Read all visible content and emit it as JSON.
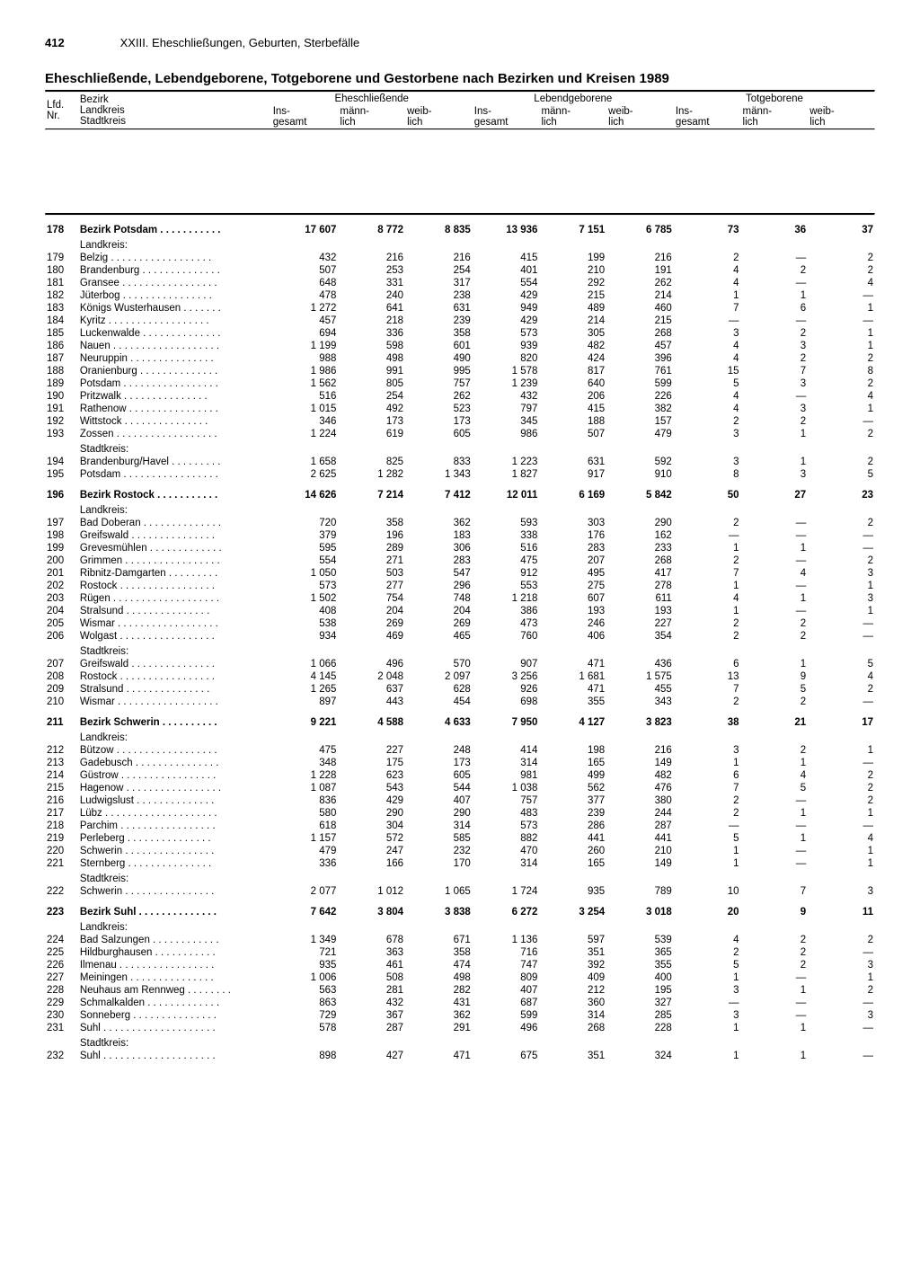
{
  "page_number": "412",
  "chapter": "XXIII. Eheschließungen, Geburten, Sterbefälle",
  "title": "Eheschließende, Lebendgeborene, Totgeborene und Gestorbene nach Bezirken und Kreisen 1989",
  "col_headers": {
    "nr": "Lfd.\nNr.",
    "region": "Bezirk\nLandkreis\nStadtkreis",
    "groups": [
      "Eheschließende",
      "Lebendgeborene",
      "Totgeborene"
    ],
    "sub": [
      "Ins-\ngesamt",
      "männ-\nlich",
      "weib-\nlich"
    ]
  },
  "section_labels": {
    "landkreis": "Landkreis:",
    "stadtkreis": "Stadtkreis:"
  },
  "rows": [
    {
      "nr": "178",
      "name": "Bezirk Potsdam",
      "v": [
        "17 607",
        "8 772",
        "8 835",
        "13 936",
        "7 151",
        "6 785",
        "73",
        "36",
        "37"
      ],
      "bold": true,
      "pad": true
    },
    {
      "label": "landkreis"
    },
    {
      "nr": "179",
      "name": "Belzig",
      "v": [
        "432",
        "216",
        "216",
        "415",
        "199",
        "216",
        "2",
        "—",
        "2"
      ]
    },
    {
      "nr": "180",
      "name": "Brandenburg",
      "v": [
        "507",
        "253",
        "254",
        "401",
        "210",
        "191",
        "4",
        "2",
        "2"
      ]
    },
    {
      "nr": "181",
      "name": "Gransee",
      "v": [
        "648",
        "331",
        "317",
        "554",
        "292",
        "262",
        "4",
        "—",
        "4"
      ]
    },
    {
      "nr": "182",
      "name": "Jüterbog",
      "v": [
        "478",
        "240",
        "238",
        "429",
        "215",
        "214",
        "1",
        "1",
        "—"
      ]
    },
    {
      "nr": "183",
      "name": "Königs Wusterhausen",
      "v": [
        "1 272",
        "641",
        "631",
        "949",
        "489",
        "460",
        "7",
        "6",
        "1"
      ]
    },
    {
      "nr": "184",
      "name": "Kyritz",
      "v": [
        "457",
        "218",
        "239",
        "429",
        "214",
        "215",
        "—",
        "—",
        "—"
      ]
    },
    {
      "nr": "185",
      "name": "Luckenwalde",
      "v": [
        "694",
        "336",
        "358",
        "573",
        "305",
        "268",
        "3",
        "2",
        "1"
      ]
    },
    {
      "nr": "186",
      "name": "Nauen",
      "v": [
        "1 199",
        "598",
        "601",
        "939",
        "482",
        "457",
        "4",
        "3",
        "1"
      ]
    },
    {
      "nr": "187",
      "name": "Neuruppin",
      "v": [
        "988",
        "498",
        "490",
        "820",
        "424",
        "396",
        "4",
        "2",
        "2"
      ]
    },
    {
      "nr": "188",
      "name": "Oranienburg",
      "v": [
        "1 986",
        "991",
        "995",
        "1 578",
        "817",
        "761",
        "15",
        "7",
        "8"
      ]
    },
    {
      "nr": "189",
      "name": "Potsdam",
      "v": [
        "1 562",
        "805",
        "757",
        "1 239",
        "640",
        "599",
        "5",
        "3",
        "2"
      ]
    },
    {
      "nr": "190",
      "name": "Pritzwalk",
      "v": [
        "516",
        "254",
        "262",
        "432",
        "206",
        "226",
        "4",
        "—",
        "4"
      ]
    },
    {
      "nr": "191",
      "name": "Rathenow",
      "v": [
        "1 015",
        "492",
        "523",
        "797",
        "415",
        "382",
        "4",
        "3",
        "1"
      ]
    },
    {
      "nr": "192",
      "name": "Wittstock",
      "v": [
        "346",
        "173",
        "173",
        "345",
        "188",
        "157",
        "2",
        "2",
        "—"
      ]
    },
    {
      "nr": "193",
      "name": "Zossen",
      "v": [
        "1 224",
        "619",
        "605",
        "986",
        "507",
        "479",
        "3",
        "1",
        "2"
      ]
    },
    {
      "label": "stadtkreis"
    },
    {
      "nr": "194",
      "name": "Brandenburg/Havel",
      "v": [
        "1 658",
        "825",
        "833",
        "1 223",
        "631",
        "592",
        "3",
        "1",
        "2"
      ]
    },
    {
      "nr": "195",
      "name": "Potsdam",
      "v": [
        "2 625",
        "1 282",
        "1 343",
        "1 827",
        "917",
        "910",
        "8",
        "3",
        "5"
      ]
    },
    {
      "nr": "196",
      "name": "Bezirk Rostock",
      "v": [
        "14 626",
        "7 214",
        "7 412",
        "12 011",
        "6 169",
        "5 842",
        "50",
        "27",
        "23"
      ],
      "bold": true,
      "pad": true
    },
    {
      "label": "landkreis"
    },
    {
      "nr": "197",
      "name": "Bad Doberan",
      "v": [
        "720",
        "358",
        "362",
        "593",
        "303",
        "290",
        "2",
        "—",
        "2"
      ]
    },
    {
      "nr": "198",
      "name": "Greifswald",
      "v": [
        "379",
        "196",
        "183",
        "338",
        "176",
        "162",
        "—",
        "—",
        "—"
      ]
    },
    {
      "nr": "199",
      "name": "Grevesmühlen",
      "v": [
        "595",
        "289",
        "306",
        "516",
        "283",
        "233",
        "1",
        "1",
        "—"
      ]
    },
    {
      "nr": "200",
      "name": "Grimmen",
      "v": [
        "554",
        "271",
        "283",
        "475",
        "207",
        "268",
        "2",
        "—",
        "2"
      ]
    },
    {
      "nr": "201",
      "name": "Ribnitz-Damgarten",
      "v": [
        "1 050",
        "503",
        "547",
        "912",
        "495",
        "417",
        "7",
        "4",
        "3"
      ]
    },
    {
      "nr": "202",
      "name": "Rostock",
      "v": [
        "573",
        "277",
        "296",
        "553",
        "275",
        "278",
        "1",
        "—",
        "1"
      ]
    },
    {
      "nr": "203",
      "name": "Rügen",
      "v": [
        "1 502",
        "754",
        "748",
        "1 218",
        "607",
        "611",
        "4",
        "1",
        "3"
      ]
    },
    {
      "nr": "204",
      "name": "Stralsund",
      "v": [
        "408",
        "204",
        "204",
        "386",
        "193",
        "193",
        "1",
        "—",
        "1"
      ]
    },
    {
      "nr": "205",
      "name": "Wismar",
      "v": [
        "538",
        "269",
        "269",
        "473",
        "246",
        "227",
        "2",
        "2",
        "—"
      ]
    },
    {
      "nr": "206",
      "name": "Wolgast",
      "v": [
        "934",
        "469",
        "465",
        "760",
        "406",
        "354",
        "2",
        "2",
        "—"
      ]
    },
    {
      "label": "stadtkreis"
    },
    {
      "nr": "207",
      "name": "Greifswald",
      "v": [
        "1 066",
        "496",
        "570",
        "907",
        "471",
        "436",
        "6",
        "1",
        "5"
      ]
    },
    {
      "nr": "208",
      "name": "Rostock",
      "v": [
        "4 145",
        "2 048",
        "2 097",
        "3 256",
        "1 681",
        "1 575",
        "13",
        "9",
        "4"
      ]
    },
    {
      "nr": "209",
      "name": "Stralsund",
      "v": [
        "1 265",
        "637",
        "628",
        "926",
        "471",
        "455",
        "7",
        "5",
        "2"
      ]
    },
    {
      "nr": "210",
      "name": "Wismar",
      "v": [
        "897",
        "443",
        "454",
        "698",
        "355",
        "343",
        "2",
        "2",
        "—"
      ]
    },
    {
      "nr": "211",
      "name": "Bezirk Schwerin",
      "v": [
        "9 221",
        "4 588",
        "4 633",
        "7 950",
        "4 127",
        "3 823",
        "38",
        "21",
        "17"
      ],
      "bold": true,
      "pad": true
    },
    {
      "label": "landkreis"
    },
    {
      "nr": "212",
      "name": "Bützow",
      "v": [
        "475",
        "227",
        "248",
        "414",
        "198",
        "216",
        "3",
        "2",
        "1"
      ]
    },
    {
      "nr": "213",
      "name": "Gadebusch",
      "v": [
        "348",
        "175",
        "173",
        "314",
        "165",
        "149",
        "1",
        "1",
        "—"
      ]
    },
    {
      "nr": "214",
      "name": "Güstrow",
      "v": [
        "1 228",
        "623",
        "605",
        "981",
        "499",
        "482",
        "6",
        "4",
        "2"
      ]
    },
    {
      "nr": "215",
      "name": "Hagenow",
      "v": [
        "1 087",
        "543",
        "544",
        "1 038",
        "562",
        "476",
        "7",
        "5",
        "2"
      ]
    },
    {
      "nr": "216",
      "name": "Ludwigslust",
      "v": [
        "836",
        "429",
        "407",
        "757",
        "377",
        "380",
        "2",
        "—",
        "2"
      ]
    },
    {
      "nr": "217",
      "name": "Lübz",
      "v": [
        "580",
        "290",
        "290",
        "483",
        "239",
        "244",
        "2",
        "1",
        "1"
      ]
    },
    {
      "nr": "218",
      "name": "Parchim",
      "v": [
        "618",
        "304",
        "314",
        "573",
        "286",
        "287",
        "—",
        "—",
        "—"
      ]
    },
    {
      "nr": "219",
      "name": "Perleberg",
      "v": [
        "1 157",
        "572",
        "585",
        "882",
        "441",
        "441",
        "5",
        "1",
        "4"
      ]
    },
    {
      "nr": "220",
      "name": "Schwerin",
      "v": [
        "479",
        "247",
        "232",
        "470",
        "260",
        "210",
        "1",
        "—",
        "1"
      ]
    },
    {
      "nr": "221",
      "name": "Sternberg",
      "v": [
        "336",
        "166",
        "170",
        "314",
        "165",
        "149",
        "1",
        "—",
        "1"
      ]
    },
    {
      "label": "stadtkreis"
    },
    {
      "nr": "222",
      "name": "Schwerin",
      "v": [
        "2 077",
        "1 012",
        "1 065",
        "1 724",
        "935",
        "789",
        "10",
        "7",
        "3"
      ]
    },
    {
      "nr": "223",
      "name": "Bezirk Suhl",
      "v": [
        "7 642",
        "3 804",
        "3 838",
        "6 272",
        "3 254",
        "3 018",
        "20",
        "9",
        "11"
      ],
      "bold": true,
      "pad": true
    },
    {
      "label": "landkreis"
    },
    {
      "nr": "224",
      "name": "Bad Salzungen",
      "v": [
        "1 349",
        "678",
        "671",
        "1 136",
        "597",
        "539",
        "4",
        "2",
        "2"
      ]
    },
    {
      "nr": "225",
      "name": "Hildburghausen",
      "v": [
        "721",
        "363",
        "358",
        "716",
        "351",
        "365",
        "2",
        "2",
        "—"
      ]
    },
    {
      "nr": "226",
      "name": "Ilmenau",
      "v": [
        "935",
        "461",
        "474",
        "747",
        "392",
        "355",
        "5",
        "2",
        "3"
      ]
    },
    {
      "nr": "227",
      "name": "Meiningen",
      "v": [
        "1 006",
        "508",
        "498",
        "809",
        "409",
        "400",
        "1",
        "—",
        "1"
      ]
    },
    {
      "nr": "228",
      "name": "Neuhaus am Rennweg",
      "v": [
        "563",
        "281",
        "282",
        "407",
        "212",
        "195",
        "3",
        "1",
        "2"
      ]
    },
    {
      "nr": "229",
      "name": "Schmalkalden",
      "v": [
        "863",
        "432",
        "431",
        "687",
        "360",
        "327",
        "—",
        "—",
        "—"
      ]
    },
    {
      "nr": "230",
      "name": "Sonneberg",
      "v": [
        "729",
        "367",
        "362",
        "599",
        "314",
        "285",
        "3",
        "—",
        "3"
      ]
    },
    {
      "nr": "231",
      "name": "Suhl",
      "v": [
        "578",
        "287",
        "291",
        "496",
        "268",
        "228",
        "1",
        "1",
        "—"
      ]
    },
    {
      "label": "stadtkreis"
    },
    {
      "nr": "232",
      "name": "Suhl",
      "v": [
        "898",
        "427",
        "471",
        "675",
        "351",
        "324",
        "1",
        "1",
        "—"
      ]
    }
  ]
}
